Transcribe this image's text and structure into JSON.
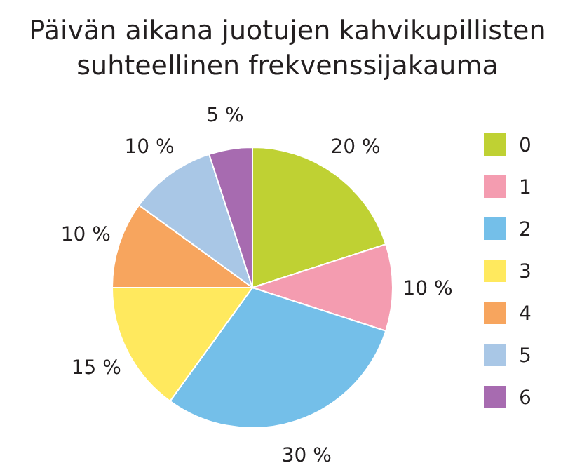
{
  "chart_data": {
    "type": "pie",
    "title": "Päivän aikana juotujen kahvikupillisten suhteellinen frekvenssijakauma",
    "categories": [
      "0",
      "1",
      "2",
      "3",
      "4",
      "5",
      "6"
    ],
    "values": [
      20,
      10,
      30,
      15,
      10,
      10,
      5
    ],
    "value_labels": [
      "20 %",
      "10 %",
      "30 %",
      "15 %",
      "10 %",
      "10 %",
      "5 %"
    ],
    "colors": [
      "#bfd133",
      "#f49cb0",
      "#74bfe9",
      "#ffe95e",
      "#f7a55e",
      "#a9c7e6",
      "#a76bb0"
    ],
    "legend": "right"
  }
}
